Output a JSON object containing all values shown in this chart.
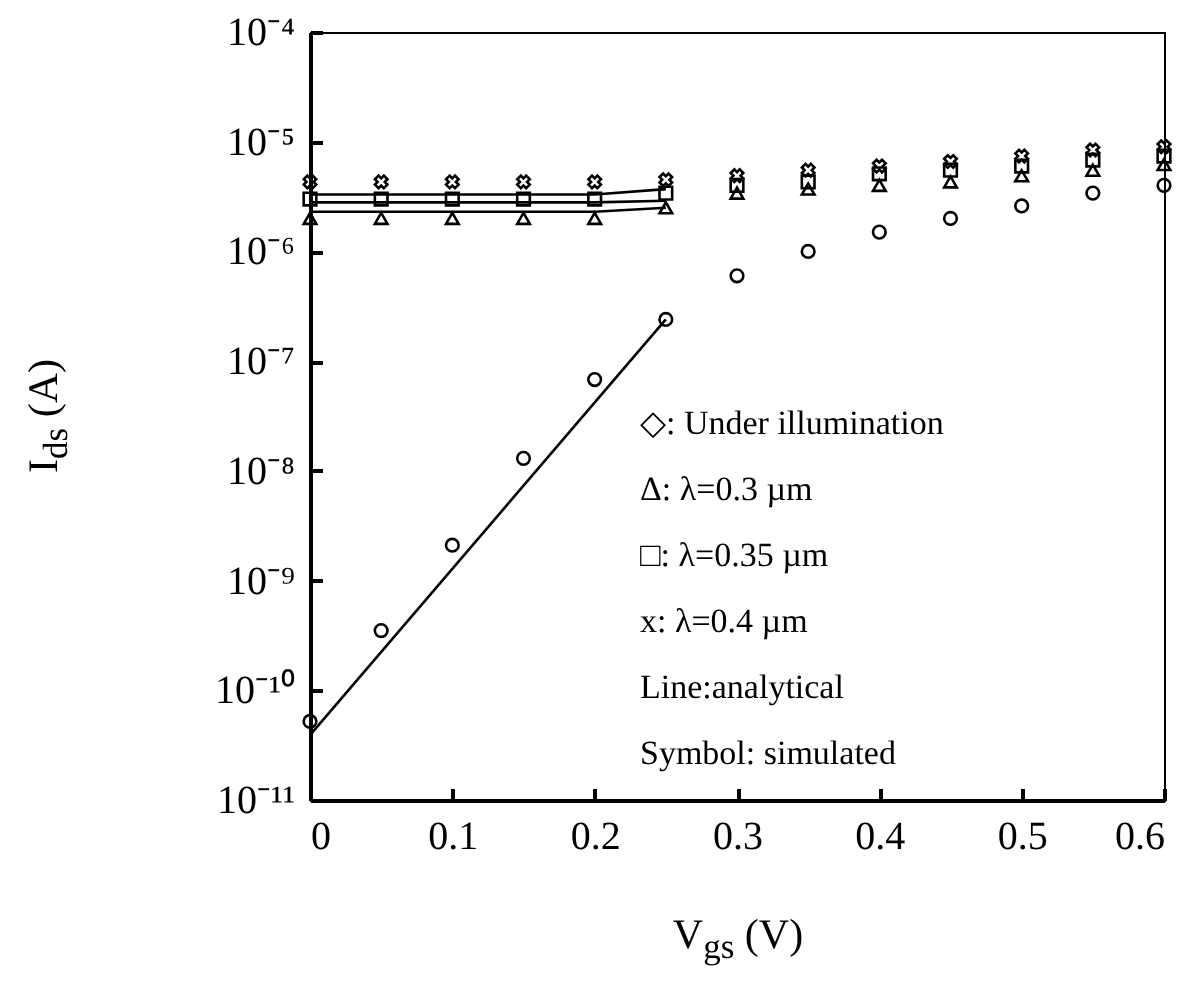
{
  "chart_data": {
    "type": "scatter",
    "xlabel": "V$_{gs}$ (V)",
    "ylabel": "I$_{ds}$ (A)",
    "log": "y",
    "grid": false,
    "xlim": [
      0,
      0.6
    ],
    "xticks": [
      0,
      0.1,
      0.2,
      0.3,
      0.4,
      0.5,
      0.6
    ],
    "ylim": [
      1e-11,
      0.0001
    ],
    "yticks": [
      {
        "value": 1e-11,
        "label": "10⁻¹¹"
      },
      {
        "value": 1e-10,
        "label": "10⁻¹⁰"
      },
      {
        "value": 1e-09,
        "label": "10⁻⁹"
      },
      {
        "value": 1e-08,
        "label": "10⁻⁸"
      },
      {
        "value": 1e-07,
        "label": "10⁻⁷"
      },
      {
        "value": 1e-06,
        "label": "10⁻⁶"
      },
      {
        "value": 1e-05,
        "label": "10⁻⁵"
      },
      {
        "value": 0.0001,
        "label": "10⁻⁴"
      }
    ],
    "x": [
      0,
      0.05,
      0.1,
      0.15,
      0.2,
      0.25,
      0.3,
      0.35,
      0.4,
      0.45,
      0.5,
      0.55,
      0.6
    ],
    "series": [
      {
        "type": "scatter",
        "marker": "circle",
        "color": "#000000",
        "values": [
          5.2e-11,
          3.5e-10,
          2.1e-09,
          1.3e-08,
          6.8e-08,
          2.4e-07,
          6e-07,
          1e-06,
          1.5e-06,
          2e-06,
          2.6e-06,
          3.4e-06,
          4e-06
        ]
      },
      {
        "type": "scatter",
        "marker": "triangle",
        "color": "#000000",
        "values": [
          2e-06,
          2e-06,
          2e-06,
          2e-06,
          2e-06,
          2.5e-06,
          3.4e-06,
          3.7e-06,
          4e-06,
          4.3e-06,
          4.9e-06,
          5.5e-06,
          6.2e-06
        ]
      },
      {
        "type": "scatter",
        "marker": "square",
        "color": "#000000",
        "values": [
          3e-06,
          3e-06,
          3e-06,
          3e-06,
          3e-06,
          3.4e-06,
          4e-06,
          4.3e-06,
          5.1e-06,
          5.5e-06,
          6e-06,
          6.8e-06,
          7.4e-06
        ]
      },
      {
        "type": "scatter",
        "marker": "cross",
        "color": "#000000",
        "values": [
          4.3e-06,
          4.3e-06,
          4.3e-06,
          4.3e-06,
          4.3e-06,
          4.5e-06,
          4.9e-06,
          5.5e-06,
          6e-06,
          6.6e-06,
          7.4e-06,
          8.4e-06,
          9e-06
        ]
      },
      {
        "type": "line",
        "marker": "none",
        "line_style": "solid",
        "color": "#000000",
        "x": [
          0,
          0.25
        ],
        "values": [
          3.9e-11,
          2.4e-07
        ]
      },
      {
        "type": "line",
        "marker": "none",
        "line_style": "solid",
        "color": "#000000",
        "x": [
          0,
          0.2,
          0.25
        ],
        "values": [
          3.3e-06,
          3.3e-06,
          3.7e-06
        ]
      },
      {
        "type": "line",
        "marker": "none",
        "line_style": "solid",
        "color": "#000000",
        "x": [
          0,
          0.2,
          0.25
        ],
        "values": [
          2.8e-06,
          2.8e-06,
          2.9e-06
        ]
      },
      {
        "type": "line",
        "marker": "none",
        "line_style": "solid",
        "color": "#000000",
        "x": [
          0,
          0.2,
          0.25
        ],
        "values": [
          2.3e-06,
          2.3e-06,
          2.5e-06
        ]
      }
    ],
    "annotations": [
      "◇: Under illumination",
      "Δ: λ=0.3 µm",
      "□:  λ=0.35 µm",
      "x: λ=0.4 µm",
      "Line:analytical",
      "Symbol: simulated"
    ]
  }
}
